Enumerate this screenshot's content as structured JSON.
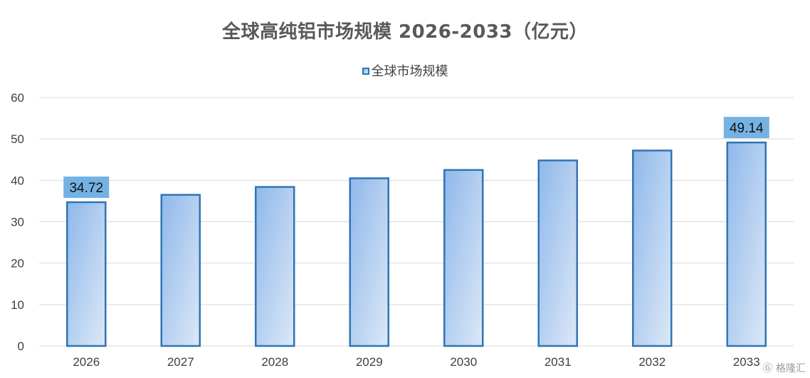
{
  "chart_data": {
    "type": "bar",
    "title": "全球高纯铝市场规模 2026-2033（亿元）",
    "categories": [
      "2026",
      "2027",
      "2028",
      "2029",
      "2030",
      "2031",
      "2032",
      "2033"
    ],
    "series": [
      {
        "name": "全球市场规模",
        "values": [
          34.72,
          36.5,
          38.4,
          40.5,
          42.5,
          44.8,
          47.2,
          49.14
        ]
      }
    ],
    "data_labels": [
      {
        "index": 0,
        "text": "34.72"
      },
      {
        "index": 7,
        "text": "49.14"
      }
    ],
    "ylim": [
      0,
      60
    ],
    "yticks": [
      0,
      10,
      20,
      30,
      40,
      50,
      60
    ],
    "grid": true,
    "legend_position": "top-center",
    "colors": {
      "bar_stroke": "#2e75b6",
      "bar_fill_start": "#8fb8ea",
      "bar_fill_end": "#dce8f7",
      "label_bg": "#74b2e3",
      "grid": "#d9d9d9",
      "axis_text": "#404040",
      "title_text": "#595959"
    }
  },
  "watermark": {
    "text": "格隆汇",
    "icon": "glh-logo-icon"
  }
}
